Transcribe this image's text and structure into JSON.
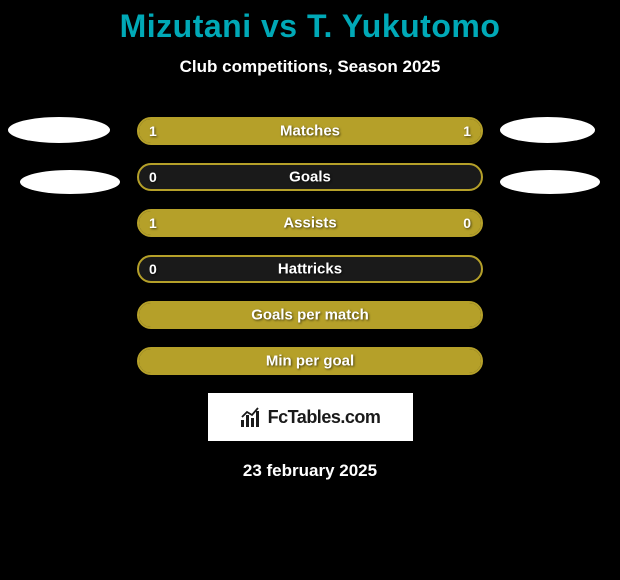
{
  "title": "Mizutani vs T. Yukutomo",
  "subtitle": "Club competitions, Season 2025",
  "date": "23 february 2025",
  "branding_text": "FcTables.com",
  "colors": {
    "background": "#000000",
    "title": "#00a9b7",
    "text": "#ffffff",
    "bar_fill": "#b5a029",
    "bar_border": "#b5a029",
    "oval": "#ffffff",
    "brand_bg": "#ffffff",
    "brand_text": "#1a1a1a"
  },
  "stats": [
    {
      "label": "Matches",
      "left_value": "1",
      "right_value": "1",
      "left_fill_pct": 50,
      "right_fill_pct": 50,
      "full": true,
      "show_values": true
    },
    {
      "label": "Goals",
      "left_value": "0",
      "right_value": "",
      "left_fill_pct": 0,
      "right_fill_pct": 0,
      "full": false,
      "show_values": true
    },
    {
      "label": "Assists",
      "left_value": "1",
      "right_value": "0",
      "left_fill_pct": 76,
      "right_fill_pct": 24,
      "full": true,
      "show_values": true
    },
    {
      "label": "Hattricks",
      "left_value": "0",
      "right_value": "",
      "left_fill_pct": 0,
      "right_fill_pct": 0,
      "full": false,
      "show_values": true
    },
    {
      "label": "Goals per match",
      "left_value": "",
      "right_value": "",
      "left_fill_pct": 100,
      "right_fill_pct": 0,
      "full": true,
      "show_values": false
    },
    {
      "label": "Min per goal",
      "left_value": "",
      "right_value": "",
      "left_fill_pct": 100,
      "right_fill_pct": 0,
      "full": true,
      "show_values": false
    }
  ],
  "ovals": [
    {
      "class": "oval-left-1"
    },
    {
      "class": "oval-right-1"
    },
    {
      "class": "oval-left-2"
    },
    {
      "class": "oval-right-2"
    }
  ]
}
